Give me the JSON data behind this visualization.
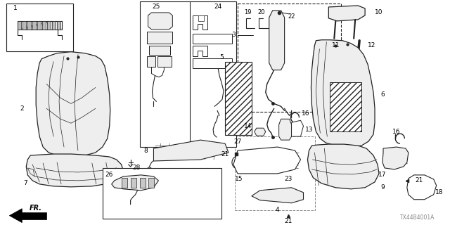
{
  "bg_color": "#ffffff",
  "diagram_code": "TX44B4001A",
  "line_color": "#222222",
  "gray_fill": "#d8d8d8",
  "light_gray": "#eeeeee"
}
